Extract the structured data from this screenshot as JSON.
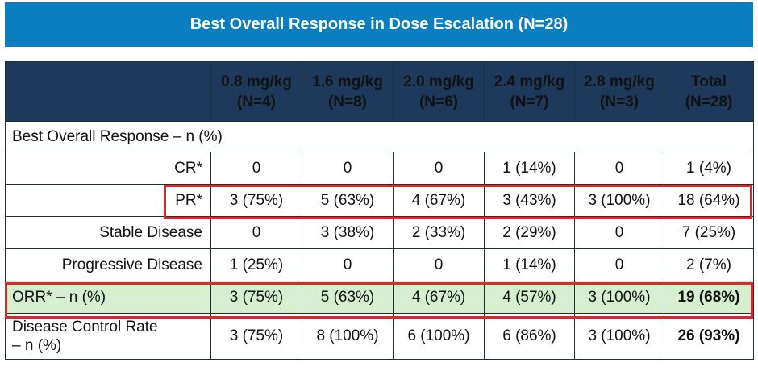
{
  "title": "Best Overall Response in Dose Escalation (N=28)",
  "columns": [
    {
      "dose": "0.8 mg/kg",
      "n": "(N=4)"
    },
    {
      "dose": "1.6 mg/kg",
      "n": "(N=8)"
    },
    {
      "dose": "2.0 mg/kg",
      "n": "(N=6)"
    },
    {
      "dose": "2.4 mg/kg",
      "n": "(N=7)"
    },
    {
      "dose": "2.8 mg/kg",
      "n": "(N=3)"
    },
    {
      "dose": "Total",
      "n": "(N=28)"
    }
  ],
  "section_label": "Best Overall Response – n (%)",
  "rows": {
    "cr": {
      "label": "CR*",
      "values": [
        "0",
        "0",
        "0",
        "1 (14%)",
        "0",
        "1 (4%)"
      ]
    },
    "pr": {
      "label": "PR*",
      "values": [
        "3 (75%)",
        "5 (63%)",
        "4 (67%)",
        "3 (43%)",
        "3 (100%)",
        "18 (64%)"
      ]
    },
    "sd": {
      "label": "Stable Disease",
      "values": [
        "0",
        "3 (38%)",
        "2 (33%)",
        "2 (29%)",
        "0",
        "7 (25%)"
      ]
    },
    "pd": {
      "label": "Progressive Disease",
      "values": [
        "1 (25%)",
        "0",
        "0",
        "1 (14%)",
        "0",
        "2 (7%)"
      ]
    },
    "orr": {
      "label": "ORR* – n (%)",
      "values": [
        "3 (75%)",
        "5 (63%)",
        "4 (67%)",
        "4 (57%)",
        "3 (100%)",
        "19 (68%)"
      ]
    },
    "dcr": {
      "label_line1": "Disease Control Rate",
      "label_line2": "– n (%)",
      "values": [
        "3 (75%)",
        "8 (100%)",
        "6 (100%)",
        "6 (86%)",
        "3 (100%)",
        "26 (93%)"
      ]
    }
  },
  "colors": {
    "banner": "#0b7ec2",
    "header": "#1d3a5c",
    "orr_fill": "#d6efcf",
    "highlight": "#e02626"
  }
}
